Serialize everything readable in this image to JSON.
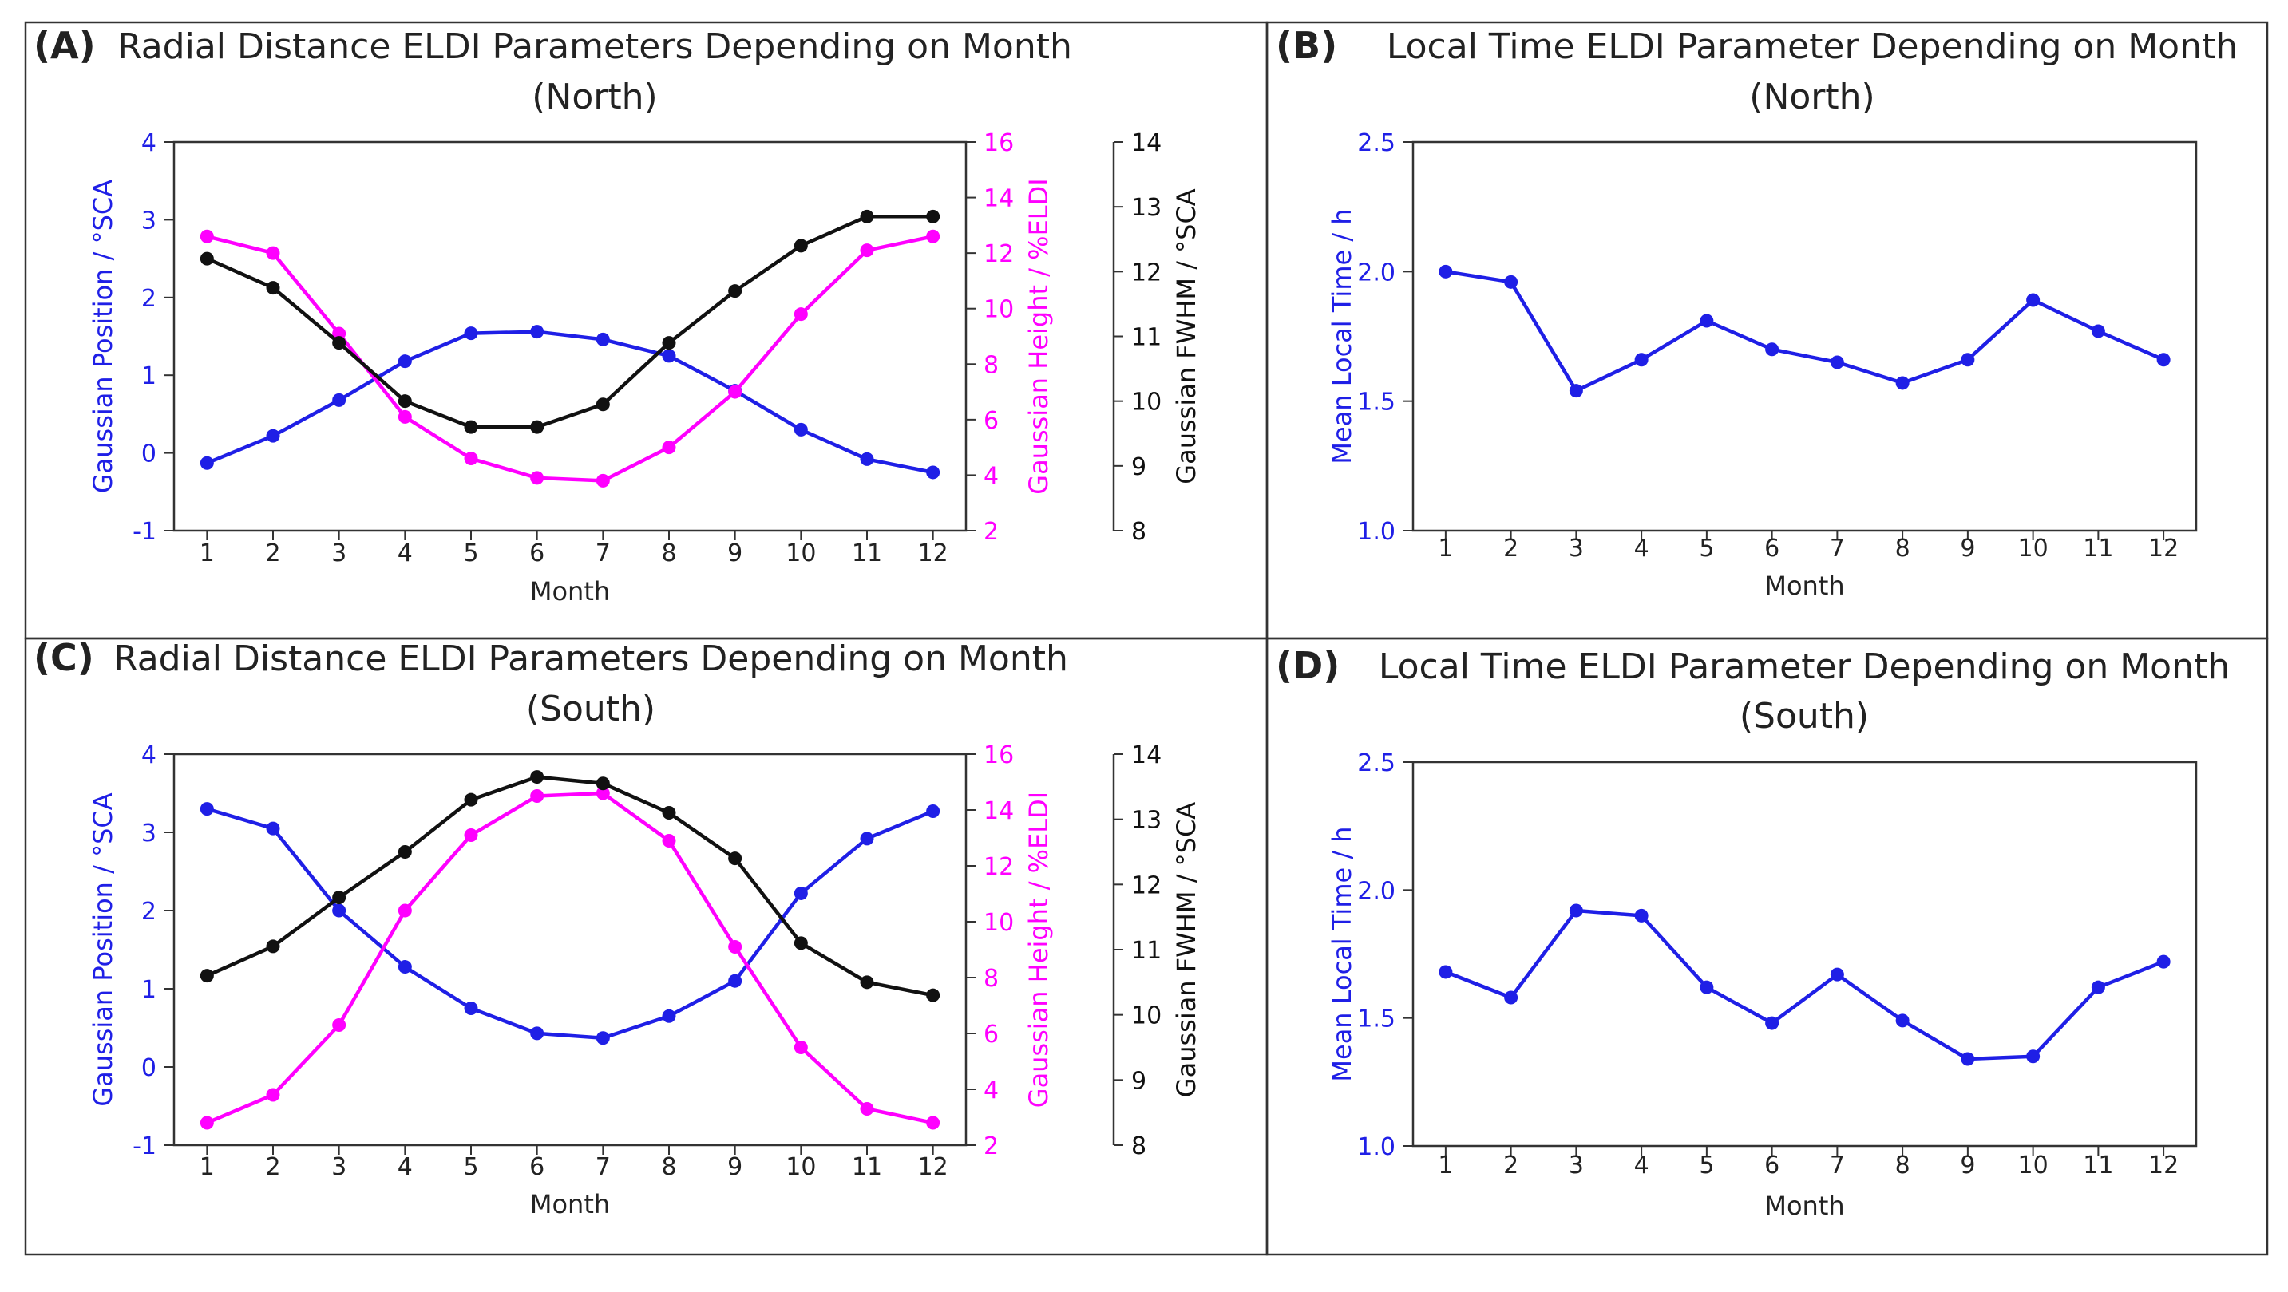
{
  "colors": {
    "position": "#1f1fe6",
    "height": "#ff00ff",
    "fwhm": "#111111",
    "local_time": "#1f1fe6",
    "frame": "#333333",
    "text": "#222222"
  },
  "chart_data": [
    {
      "panel": "A",
      "letter": "(A)",
      "type": "line",
      "title": "Radial Distance ELDI Parameters Depending on Month",
      "subtitle": "(North)",
      "xlabel": "Month",
      "x": [
        1,
        2,
        3,
        4,
        5,
        6,
        7,
        8,
        9,
        10,
        11,
        12
      ],
      "xlim": [
        0.5,
        12.5
      ],
      "x_ticks": [
        "1",
        "2",
        "3",
        "4",
        "5",
        "6",
        "7",
        "8",
        "9",
        "10",
        "11",
        "12"
      ],
      "axes": [
        {
          "id": "position",
          "label": "Gaussian Position / °SCA",
          "ylim": [
            -1,
            4
          ],
          "ticks": [
            "-1",
            "0",
            "1",
            "2",
            "3",
            "4"
          ]
        },
        {
          "id": "height",
          "label": "Gaussian Height / %ELDI",
          "ylim": [
            2,
            16
          ],
          "ticks": [
            "2",
            "4",
            "6",
            "8",
            "10",
            "12",
            "14",
            "16"
          ]
        },
        {
          "id": "fwhm",
          "label": "Gaussian FWHM / °SCA",
          "ylim": [
            8,
            14
          ],
          "ticks": [
            "8",
            "9",
            "10",
            "11",
            "12",
            "13",
            "14"
          ]
        }
      ],
      "series": [
        {
          "name": "Gaussian Position",
          "axis": "position",
          "values": [
            -0.13,
            0.22,
            0.68,
            1.18,
            1.54,
            1.56,
            1.46,
            1.25,
            0.8,
            0.3,
            -0.08,
            -0.25
          ]
        },
        {
          "name": "Gaussian Height",
          "axis": "height",
          "values": [
            12.6,
            12.0,
            9.1,
            6.1,
            4.6,
            3.9,
            3.8,
            5.0,
            7.0,
            9.8,
            12.1,
            12.6
          ]
        },
        {
          "name": "Gaussian FWHM",
          "axis": "fwhm",
          "values": [
            12.2,
            11.75,
            10.9,
            10.0,
            9.6,
            9.6,
            9.95,
            10.9,
            11.7,
            12.4,
            12.85,
            12.85
          ]
        }
      ]
    },
    {
      "panel": "B",
      "letter": "(B)",
      "type": "line",
      "title": "Local Time ELDI Parameter Depending on Month",
      "subtitle": "(North)",
      "xlabel": "Month",
      "x": [
        1,
        2,
        3,
        4,
        5,
        6,
        7,
        8,
        9,
        10,
        11,
        12
      ],
      "xlim": [
        0.5,
        12.5
      ],
      "x_ticks": [
        "1",
        "2",
        "3",
        "4",
        "5",
        "6",
        "7",
        "8",
        "9",
        "10",
        "11",
        "12"
      ],
      "axes": [
        {
          "id": "local_time",
          "label": "Mean Local Time / h",
          "ylim": [
            1.0,
            2.5
          ],
          "ticks": [
            "1.0",
            "1.5",
            "2.0",
            "2.5"
          ]
        }
      ],
      "series": [
        {
          "name": "Mean Local Time",
          "axis": "local_time",
          "values": [
            2.0,
            1.96,
            1.54,
            1.66,
            1.81,
            1.7,
            1.65,
            1.57,
            1.66,
            1.89,
            1.77,
            1.66
          ]
        }
      ]
    },
    {
      "panel": "C",
      "letter": "(C)",
      "type": "line",
      "title": "Radial Distance ELDI Parameters Depending on Month",
      "subtitle": "(South)",
      "xlabel": "Month",
      "x": [
        1,
        2,
        3,
        4,
        5,
        6,
        7,
        8,
        9,
        10,
        11,
        12
      ],
      "xlim": [
        0.5,
        12.5
      ],
      "x_ticks": [
        "1",
        "2",
        "3",
        "4",
        "5",
        "6",
        "7",
        "8",
        "9",
        "10",
        "11",
        "12"
      ],
      "axes": [
        {
          "id": "position",
          "label": "Gaussian Position / °SCA",
          "ylim": [
            -1,
            4
          ],
          "ticks": [
            "-1",
            "0",
            "1",
            "2",
            "3",
            "4"
          ]
        },
        {
          "id": "height",
          "label": "Gaussian Height / %ELDI",
          "ylim": [
            2,
            16
          ],
          "ticks": [
            "2",
            "4",
            "6",
            "8",
            "10",
            "12",
            "14",
            "16"
          ]
        },
        {
          "id": "fwhm",
          "label": "Gaussian FWHM / °SCA",
          "ylim": [
            8,
            14
          ],
          "ticks": [
            "8",
            "9",
            "10",
            "11",
            "12",
            "13",
            "14"
          ]
        }
      ],
      "series": [
        {
          "name": "Gaussian Position",
          "axis": "position",
          "values": [
            3.3,
            3.05,
            2.0,
            1.28,
            0.75,
            0.43,
            0.37,
            0.65,
            1.1,
            2.22,
            2.92,
            3.27
          ]
        },
        {
          "name": "Gaussian Height",
          "axis": "height",
          "values": [
            2.8,
            3.8,
            6.3,
            10.4,
            13.1,
            14.5,
            14.6,
            12.9,
            9.1,
            5.5,
            3.3,
            2.8
          ]
        },
        {
          "name": "Gaussian FWHM",
          "axis": "fwhm",
          "values": [
            10.6,
            11.05,
            11.8,
            12.5,
            13.3,
            13.65,
            13.55,
            13.1,
            12.4,
            11.1,
            10.5,
            10.3
          ]
        }
      ]
    },
    {
      "panel": "D",
      "letter": "(D)",
      "type": "line",
      "title": "Local Time ELDI Parameter Depending on Month",
      "subtitle": "(South)",
      "xlabel": "Month",
      "x": [
        1,
        2,
        3,
        4,
        5,
        6,
        7,
        8,
        9,
        10,
        11,
        12
      ],
      "xlim": [
        0.5,
        12.5
      ],
      "x_ticks": [
        "1",
        "2",
        "3",
        "4",
        "5",
        "6",
        "7",
        "8",
        "9",
        "10",
        "11",
        "12"
      ],
      "axes": [
        {
          "id": "local_time",
          "label": "Mean Local Time / h",
          "ylim": [
            1.0,
            2.5
          ],
          "ticks": [
            "1.0",
            "1.5",
            "2.0",
            "2.5"
          ]
        }
      ],
      "series": [
        {
          "name": "Mean Local Time",
          "axis": "local_time",
          "values": [
            1.68,
            1.58,
            1.92,
            1.9,
            1.62,
            1.48,
            1.67,
            1.49,
            1.34,
            1.35,
            1.62,
            1.72
          ]
        }
      ]
    }
  ]
}
